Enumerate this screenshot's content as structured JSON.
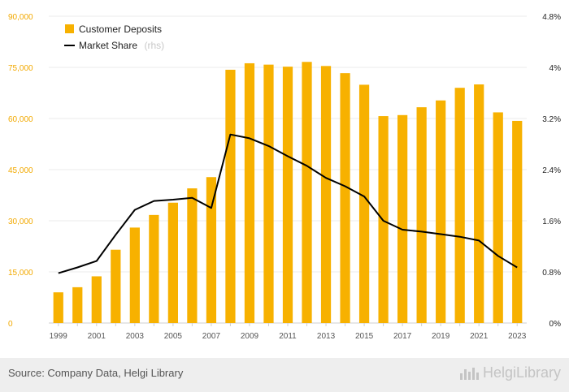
{
  "chart_data": {
    "type": "bar+line",
    "title": "",
    "x": [
      "1999",
      "2000",
      "2001",
      "2002",
      "2003",
      "2004",
      "2005",
      "2006",
      "2007",
      "2008",
      "2009",
      "2010",
      "2011",
      "2012",
      "2013",
      "2014",
      "2015",
      "2016",
      "2017",
      "2018",
      "2019",
      "2020",
      "2021",
      "2022",
      "2023"
    ],
    "x_tick_labels": [
      "1999",
      "2001",
      "2003",
      "2005",
      "2007",
      "2009",
      "2011",
      "2013",
      "2015",
      "2017",
      "2019",
      "2021",
      "2023"
    ],
    "series": [
      {
        "name": "Customer Deposits",
        "type": "bar",
        "axis": "left",
        "color": "#f7b100",
        "values": [
          9000,
          10500,
          13700,
          21500,
          28000,
          31700,
          35300,
          39500,
          42800,
          74300,
          76200,
          75800,
          75200,
          76600,
          75400,
          73300,
          69900,
          60700,
          61000,
          63300,
          65300,
          69000,
          70000,
          61800,
          59300
        ]
      },
      {
        "name": "Market Share",
        "suffix": "(rhs)",
        "type": "line",
        "axis": "right",
        "color": "#000000",
        "values": [
          0.78,
          0.87,
          0.97,
          1.38,
          1.77,
          1.91,
          1.93,
          1.96,
          1.8,
          2.95,
          2.89,
          2.77,
          2.61,
          2.46,
          2.27,
          2.14,
          1.98,
          1.6,
          1.46,
          1.43,
          1.39,
          1.35,
          1.29,
          1.05,
          0.87
        ]
      }
    ],
    "y_left": {
      "ylim": [
        0,
        90000
      ],
      "ticks": [
        "0",
        "15,000",
        "30,000",
        "45,000",
        "60,000",
        "75,000",
        "90,000"
      ],
      "tick_values": [
        0,
        15000,
        30000,
        45000,
        60000,
        75000,
        90000
      ],
      "color": "#f2a900"
    },
    "y_right": {
      "ylim": [
        0,
        4.8
      ],
      "ticks": [
        "0%",
        "0.8%",
        "1.6%",
        "2.4%",
        "3.2%",
        "4%",
        "4.8%"
      ],
      "tick_values": [
        0,
        0.8,
        1.6,
        2.4,
        3.2,
        4,
        4.8
      ]
    },
    "grid": true,
    "legend": "top-left"
  },
  "footer": {
    "source": "Source: Company Data, Helgi Library",
    "logo": "HelgiLibrary"
  }
}
